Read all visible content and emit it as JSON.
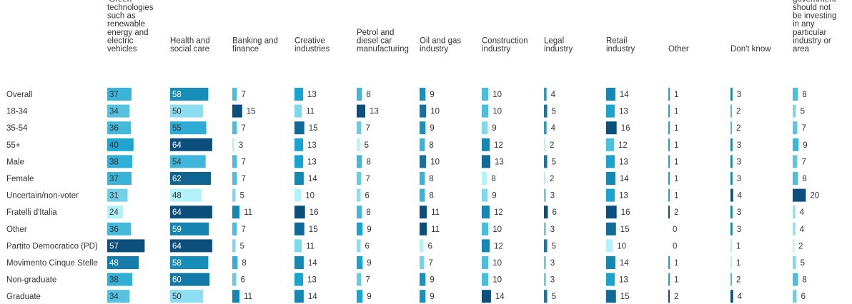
{
  "chart_data": {
    "type": "table",
    "columns": [
      "'Green' technologies such as renewable energy and electric vehicles",
      "Health and social care",
      "Banking and finance",
      "Creative industries",
      "Petrol and diesel car manufacturing",
      "Oil and gas industry",
      "Construction industry",
      "Legal industry",
      "Retail industry",
      "Other",
      "Don't know",
      "Not applicable - the government should not be investing in any particular industry or area"
    ],
    "rows": [
      "Overall",
      "18-34",
      "35-54",
      "55+",
      "Male",
      "Female",
      "Uncertain/non-voter",
      "Fratelli d'Italia",
      "Other",
      "Partito Democratico (PD)",
      "Movimento Cinque Stelle",
      "Non-graduate",
      "Graduate"
    ],
    "values": [
      [
        37,
        58,
        7,
        13,
        8,
        9,
        10,
        4,
        14,
        1,
        3,
        8
      ],
      [
        34,
        50,
        15,
        11,
        13,
        10,
        10,
        5,
        13,
        1,
        2,
        5
      ],
      [
        36,
        55,
        7,
        15,
        7,
        9,
        9,
        4,
        16,
        1,
        2,
        7
      ],
      [
        40,
        64,
        3,
        13,
        5,
        8,
        12,
        2,
        12,
        1,
        3,
        9
      ],
      [
        38,
        54,
        7,
        13,
        8,
        10,
        13,
        5,
        13,
        1,
        3,
        7
      ],
      [
        37,
        62,
        7,
        14,
        7,
        8,
        8,
        2,
        14,
        1,
        3,
        8
      ],
      [
        31,
        48,
        5,
        10,
        6,
        8,
        9,
        3,
        13,
        1,
        4,
        20
      ],
      [
        24,
        64,
        11,
        16,
        8,
        11,
        12,
        6,
        16,
        2,
        3,
        4
      ],
      [
        36,
        59,
        7,
        15,
        9,
        11,
        10,
        3,
        15,
        0,
        3,
        4
      ],
      [
        57,
        64,
        5,
        11,
        6,
        6,
        12,
        5,
        10,
        0,
        1,
        2
      ],
      [
        48,
        58,
        8,
        14,
        9,
        7,
        10,
        3,
        14,
        1,
        1,
        5
      ],
      [
        38,
        60,
        6,
        13,
        7,
        9,
        10,
        3,
        13,
        1,
        2,
        8
      ],
      [
        34,
        50,
        11,
        14,
        9,
        9,
        14,
        5,
        15,
        2,
        4,
        6
      ]
    ],
    "color_scale": {
      "min": "#b3f2fb",
      "mid": "#1aa3cf",
      "max": "#0c4f7c"
    }
  }
}
